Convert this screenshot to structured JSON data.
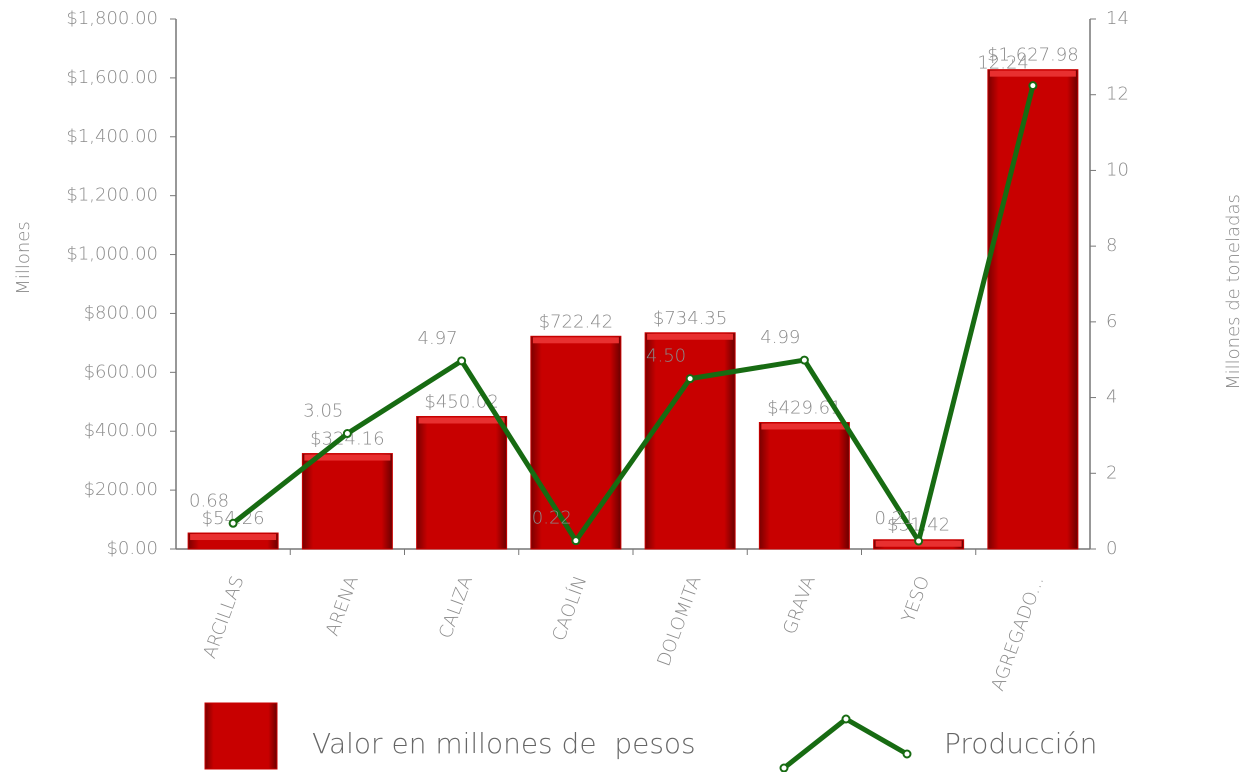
{
  "chart_data": {
    "type": "combo",
    "y_label": "Millones",
    "y2_label": "Millones de toneladas",
    "categories": [
      "ARCILLAS",
      "ARENA",
      "CALIZA",
      "CAOLÍN",
      "DOLOMITA",
      "GRAVA",
      "YESO",
      "AGREGADO..."
    ],
    "series": [
      {
        "name": "Valor en millones de  pesos",
        "type": "bar",
        "color": "#c80000",
        "values": [
          54.26,
          324.16,
          450.02,
          722.42,
          734.35,
          429.61,
          31.42,
          1627.98
        ],
        "value_labels": [
          "$54.26",
          "$324.16",
          "$450.02",
          "$722.42",
          "$734.35",
          "$429.61",
          "$31.42",
          "$1,627.98"
        ]
      },
      {
        "name": "Producción",
        "type": "line",
        "axis": "y2",
        "color": "#176b12",
        "values": [
          0.68,
          3.05,
          4.97,
          0.22,
          4.5,
          4.99,
          0.21,
          12.24
        ],
        "value_labels": [
          "0.68",
          "3.05",
          "4.97",
          "0.22",
          "4.50",
          "4.99",
          "0.21",
          "12.24"
        ]
      }
    ],
    "ylim": [
      0,
      1800
    ],
    "yticks": [
      {
        "value": 0,
        "label": "$0.00"
      },
      {
        "value": 200,
        "label": "$200.00"
      },
      {
        "value": 400,
        "label": "$400.00"
      },
      {
        "value": 600,
        "label": "$600.00"
      },
      {
        "value": 800,
        "label": "$800.00"
      },
      {
        "value": 1000,
        "label": "$1,000.00"
      },
      {
        "value": 1200,
        "label": "$1,200.00"
      },
      {
        "value": 1400,
        "label": "$1,400.00"
      },
      {
        "value": 1600,
        "label": "$1,600.00"
      },
      {
        "value": 1800,
        "label": "$1,800.00"
      }
    ],
    "y2lim": [
      0,
      14
    ],
    "y2ticks": [
      0,
      2,
      4,
      6,
      8,
      10,
      12,
      14
    ],
    "legend": "bottom"
  }
}
